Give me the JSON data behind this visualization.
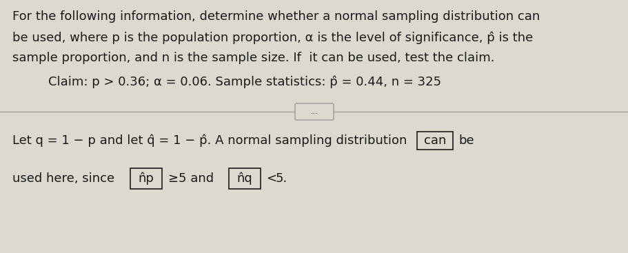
{
  "bg_color": "#ddd8d0",
  "text_color": "#1a1a1a",
  "line1": "For the following information, determine whether a normal sampling distribution can",
  "line2": "be used, where p is the population proportion, α is the level of significance, p̂ is the",
  "line3": "sample proportion, and n is the sample size. If  it can be used, test the claim.",
  "line4": "Claim: p > 0.36; α = 0.06. Sample statistics: p̂ = 0.44, n = 325",
  "separator_dots": "...",
  "bottom_line1_pre": "Let q = 1 − p and let q̂ = 1 − p̂. A normal sampling distribution",
  "bottom_line1_box": "can",
  "bottom_line1_post": "be",
  "bottom_line2_pre": "used here, since",
  "bottom_box1": "n̂p",
  "bottom_op1": "≥",
  "bottom_mid": "5 and",
  "bottom_box2": "n̂q",
  "bottom_op2": "<",
  "bottom_end": "5.",
  "font_size_main": 13.0,
  "sep_color": "#999999",
  "box_color": "#1a1a1a"
}
